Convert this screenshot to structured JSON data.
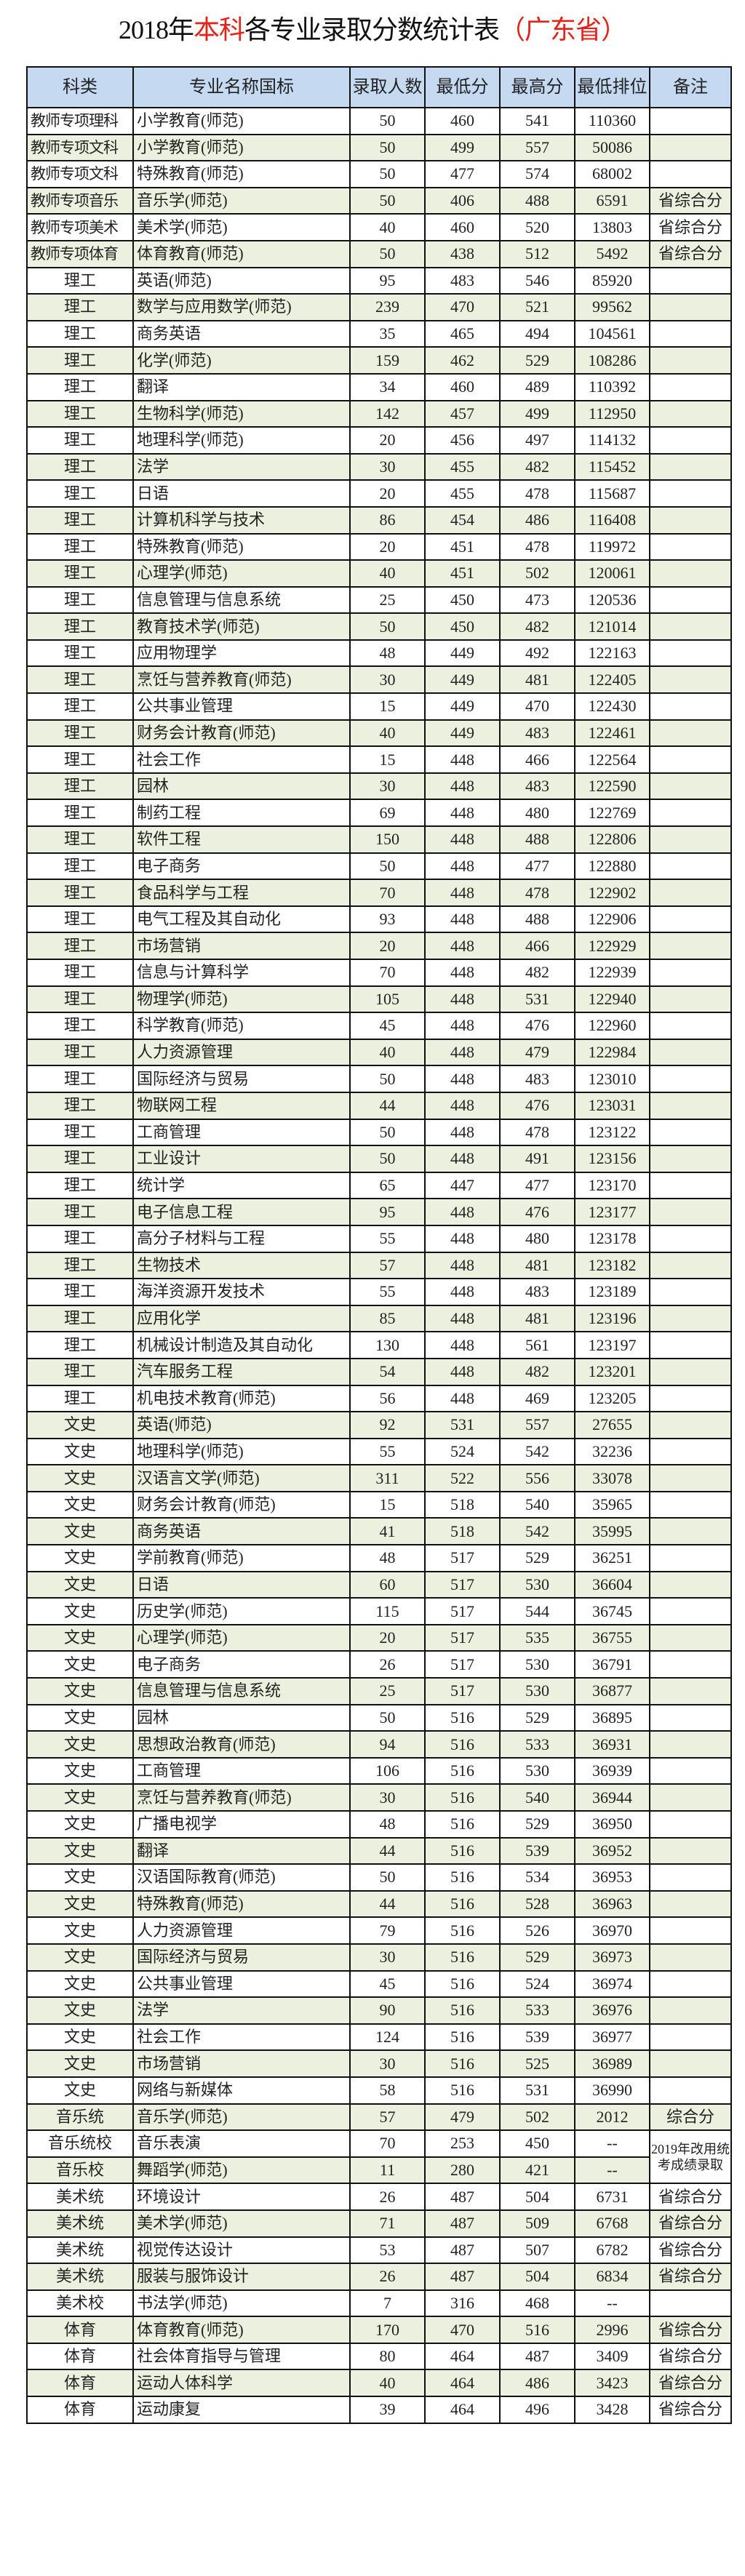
{
  "title": {
    "part1": "2018年",
    "part2": "本科",
    "part3": "各专业录取分数统计表",
    "part4": "（广东省）",
    "accent_color": "#e3241b"
  },
  "headers": [
    "科类",
    "专业名称国标",
    "录取人数",
    "最低分",
    "最高分",
    "最低排位",
    "备注"
  ],
  "rows": [
    [
      "教师专项理科",
      "小学教育(师范)",
      "50",
      "460",
      "541",
      "110360",
      ""
    ],
    [
      "教师专项文科",
      "小学教育(师范)",
      "50",
      "499",
      "557",
      "50086",
      ""
    ],
    [
      "教师专项文科",
      "特殊教育(师范)",
      "50",
      "477",
      "574",
      "68002",
      ""
    ],
    [
      "教师专项音乐",
      "音乐学(师范)",
      "50",
      "406",
      "488",
      "6591",
      "省综合分"
    ],
    [
      "教师专项美术",
      "美术学(师范)",
      "40",
      "460",
      "520",
      "13803",
      "省综合分"
    ],
    [
      "教师专项体育",
      "体育教育(师范)",
      "50",
      "438",
      "512",
      "5492",
      "省综合分"
    ],
    [
      "理工",
      "英语(师范)",
      "95",
      "483",
      "546",
      "85920",
      ""
    ],
    [
      "理工",
      "数学与应用数学(师范)",
      "239",
      "470",
      "521",
      "99562",
      ""
    ],
    [
      "理工",
      "商务英语",
      "35",
      "465",
      "494",
      "104561",
      ""
    ],
    [
      "理工",
      "化学(师范)",
      "159",
      "462",
      "529",
      "108286",
      ""
    ],
    [
      "理工",
      "翻译",
      "34",
      "460",
      "489",
      "110392",
      ""
    ],
    [
      "理工",
      "生物科学(师范)",
      "142",
      "457",
      "499",
      "112950",
      ""
    ],
    [
      "理工",
      "地理科学(师范)",
      "20",
      "456",
      "497",
      "114132",
      ""
    ],
    [
      "理工",
      "法学",
      "30",
      "455",
      "482",
      "115452",
      ""
    ],
    [
      "理工",
      "日语",
      "20",
      "455",
      "478",
      "115687",
      ""
    ],
    [
      "理工",
      "计算机科学与技术",
      "86",
      "454",
      "486",
      "116408",
      ""
    ],
    [
      "理工",
      "特殊教育(师范)",
      "20",
      "451",
      "478",
      "119972",
      ""
    ],
    [
      "理工",
      "心理学(师范)",
      "40",
      "451",
      "502",
      "120061",
      ""
    ],
    [
      "理工",
      "信息管理与信息系统",
      "25",
      "450",
      "473",
      "120536",
      ""
    ],
    [
      "理工",
      "教育技术学(师范)",
      "50",
      "450",
      "482",
      "121014",
      ""
    ],
    [
      "理工",
      "应用物理学",
      "48",
      "449",
      "492",
      "122163",
      ""
    ],
    [
      "理工",
      "烹饪与营养教育(师范)",
      "30",
      "449",
      "481",
      "122405",
      ""
    ],
    [
      "理工",
      "公共事业管理",
      "15",
      "449",
      "470",
      "122430",
      ""
    ],
    [
      "理工",
      "财务会计教育(师范)",
      "40",
      "449",
      "483",
      "122461",
      ""
    ],
    [
      "理工",
      "社会工作",
      "15",
      "448",
      "466",
      "122564",
      ""
    ],
    [
      "理工",
      "园林",
      "30",
      "448",
      "483",
      "122590",
      ""
    ],
    [
      "理工",
      "制药工程",
      "69",
      "448",
      "480",
      "122769",
      ""
    ],
    [
      "理工",
      "软件工程",
      "150",
      "448",
      "488",
      "122806",
      ""
    ],
    [
      "理工",
      "电子商务",
      "50",
      "448",
      "477",
      "122880",
      ""
    ],
    [
      "理工",
      "食品科学与工程",
      "70",
      "448",
      "478",
      "122902",
      ""
    ],
    [
      "理工",
      "电气工程及其自动化",
      "93",
      "448",
      "488",
      "122906",
      ""
    ],
    [
      "理工",
      "市场营销",
      "20",
      "448",
      "466",
      "122929",
      ""
    ],
    [
      "理工",
      "信息与计算科学",
      "70",
      "448",
      "482",
      "122939",
      ""
    ],
    [
      "理工",
      "物理学(师范)",
      "105",
      "448",
      "531",
      "122940",
      ""
    ],
    [
      "理工",
      "科学教育(师范)",
      "45",
      "448",
      "476",
      "122960",
      ""
    ],
    [
      "理工",
      "人力资源管理",
      "40",
      "448",
      "479",
      "122984",
      ""
    ],
    [
      "理工",
      "国际经济与贸易",
      "50",
      "448",
      "483",
      "123010",
      ""
    ],
    [
      "理工",
      "物联网工程",
      "44",
      "448",
      "476",
      "123031",
      ""
    ],
    [
      "理工",
      "工商管理",
      "50",
      "448",
      "478",
      "123122",
      ""
    ],
    [
      "理工",
      "工业设计",
      "50",
      "448",
      "491",
      "123156",
      ""
    ],
    [
      "理工",
      "统计学",
      "65",
      "447",
      "477",
      "123170",
      ""
    ],
    [
      "理工",
      "电子信息工程",
      "95",
      "448",
      "476",
      "123177",
      ""
    ],
    [
      "理工",
      "高分子材料与工程",
      "55",
      "448",
      "480",
      "123178",
      ""
    ],
    [
      "理工",
      "生物技术",
      "57",
      "448",
      "481",
      "123182",
      ""
    ],
    [
      "理工",
      "海洋资源开发技术",
      "55",
      "448",
      "483",
      "123189",
      ""
    ],
    [
      "理工",
      "应用化学",
      "85",
      "448",
      "481",
      "123196",
      ""
    ],
    [
      "理工",
      "机械设计制造及其自动化",
      "130",
      "448",
      "561",
      "123197",
      ""
    ],
    [
      "理工",
      "汽车服务工程",
      "54",
      "448",
      "482",
      "123201",
      ""
    ],
    [
      "理工",
      "机电技术教育(师范)",
      "56",
      "448",
      "469",
      "123205",
      ""
    ],
    [
      "文史",
      "英语(师范)",
      "92",
      "531",
      "557",
      "27655",
      ""
    ],
    [
      "文史",
      "地理科学(师范)",
      "55",
      "524",
      "542",
      "32236",
      ""
    ],
    [
      "文史",
      "汉语言文学(师范)",
      "311",
      "522",
      "556",
      "33078",
      ""
    ],
    [
      "文史",
      "财务会计教育(师范)",
      "15",
      "518",
      "540",
      "35965",
      ""
    ],
    [
      "文史",
      "商务英语",
      "41",
      "518",
      "542",
      "35995",
      ""
    ],
    [
      "文史",
      "学前教育(师范)",
      "48",
      "517",
      "529",
      "36251",
      ""
    ],
    [
      "文史",
      "日语",
      "60",
      "517",
      "530",
      "36604",
      ""
    ],
    [
      "文史",
      "历史学(师范)",
      "115",
      "517",
      "544",
      "36745",
      ""
    ],
    [
      "文史",
      "心理学(师范)",
      "20",
      "517",
      "535",
      "36755",
      ""
    ],
    [
      "文史",
      "电子商务",
      "26",
      "517",
      "530",
      "36791",
      ""
    ],
    [
      "文史",
      "信息管理与信息系统",
      "25",
      "517",
      "530",
      "36877",
      ""
    ],
    [
      "文史",
      "园林",
      "50",
      "516",
      "529",
      "36895",
      ""
    ],
    [
      "文史",
      "思想政治教育(师范)",
      "94",
      "516",
      "533",
      "36931",
      ""
    ],
    [
      "文史",
      "工商管理",
      "106",
      "516",
      "530",
      "36939",
      ""
    ],
    [
      "文史",
      "烹饪与营养教育(师范)",
      "30",
      "516",
      "540",
      "36944",
      ""
    ],
    [
      "文史",
      "广播电视学",
      "48",
      "516",
      "529",
      "36950",
      ""
    ],
    [
      "文史",
      "翻译",
      "44",
      "516",
      "539",
      "36952",
      ""
    ],
    [
      "文史",
      "汉语国际教育(师范)",
      "50",
      "516",
      "534",
      "36953",
      ""
    ],
    [
      "文史",
      "特殊教育(师范)",
      "44",
      "516",
      "528",
      "36963",
      ""
    ],
    [
      "文史",
      "人力资源管理",
      "79",
      "516",
      "526",
      "36970",
      ""
    ],
    [
      "文史",
      "国际经济与贸易",
      "30",
      "516",
      "529",
      "36973",
      ""
    ],
    [
      "文史",
      "公共事业管理",
      "45",
      "516",
      "524",
      "36974",
      ""
    ],
    [
      "文史",
      "法学",
      "90",
      "516",
      "533",
      "36976",
      ""
    ],
    [
      "文史",
      "社会工作",
      "124",
      "516",
      "539",
      "36977",
      ""
    ],
    [
      "文史",
      "市场营销",
      "30",
      "516",
      "525",
      "36989",
      ""
    ],
    [
      "文史",
      "网络与新媒体",
      "58",
      "516",
      "531",
      "36990",
      ""
    ],
    [
      "音乐统",
      "音乐学(师范)",
      "57",
      "479",
      "502",
      "2012",
      "综合分"
    ],
    [
      "音乐统校",
      "音乐表演",
      "70",
      "253",
      "450",
      "--",
      "2019年改用统考成绩录取"
    ],
    [
      "音乐校",
      "舞蹈学(师范)",
      "11",
      "280",
      "421",
      "--",
      null
    ],
    [
      "美术统",
      "环境设计",
      "26",
      "487",
      "504",
      "6731",
      "省综合分"
    ],
    [
      "美术统",
      "美术学(师范)",
      "71",
      "487",
      "509",
      "6768",
      "省综合分"
    ],
    [
      "美术统",
      "视觉传达设计",
      "53",
      "487",
      "507",
      "6782",
      "省综合分"
    ],
    [
      "美术统",
      "服装与服饰设计",
      "26",
      "487",
      "504",
      "6834",
      "省综合分"
    ],
    [
      "美术校",
      "书法学(师范)",
      "7",
      "316",
      "468",
      "--",
      ""
    ],
    [
      "体育",
      "体育教育(师范)",
      "170",
      "470",
      "516",
      "2996",
      "省综合分"
    ],
    [
      "体育",
      "社会体育指导与管理",
      "80",
      "464",
      "487",
      "3409",
      "省综合分"
    ],
    [
      "体育",
      "运动人体科学",
      "40",
      "464",
      "486",
      "3423",
      "省综合分"
    ],
    [
      "体育",
      "运动康复",
      "39",
      "464",
      "496",
      "3428",
      "省综合分"
    ]
  ]
}
